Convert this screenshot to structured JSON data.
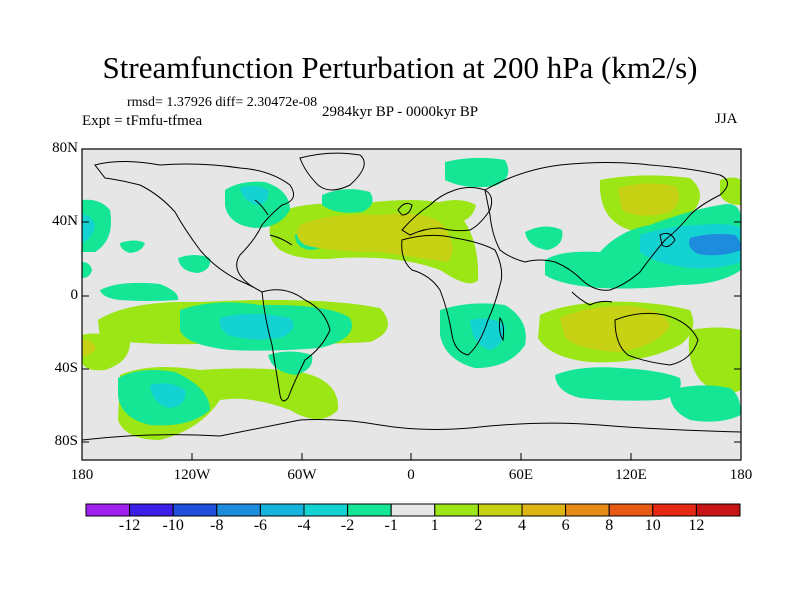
{
  "title": "Streamfunction Perturbation at 200 hPa (km2/s)",
  "stats": "rmsd= 1.37926 diff= 2.30472e-08",
  "experiment": "Expt = tFmfu-tfmea",
  "period": "2984kyr BP - 0000kyr BP",
  "season": "JJA",
  "y_ticks": [
    "80N",
    "40N",
    "0",
    "40S",
    "80S"
  ],
  "x_ticks": [
    "180",
    "120W",
    "60W",
    "0",
    "60E",
    "120E",
    "180"
  ],
  "colorbar": {
    "labels": [
      "-12",
      "-10",
      "-8",
      "-6",
      "-4",
      "-2",
      "-1",
      "1",
      "2",
      "4",
      "6",
      "8",
      "10",
      "12"
    ],
    "colors": [
      "#a020f0",
      "#3c1ee6",
      "#1e50dc",
      "#1e8cdc",
      "#14b4dc",
      "#14d2d2",
      "#14e696",
      "#e6e6e6",
      "#9be614",
      "#c8d214",
      "#dcb414",
      "#e68c14",
      "#e65a14",
      "#e62814",
      "#c81414"
    ]
  }
}
